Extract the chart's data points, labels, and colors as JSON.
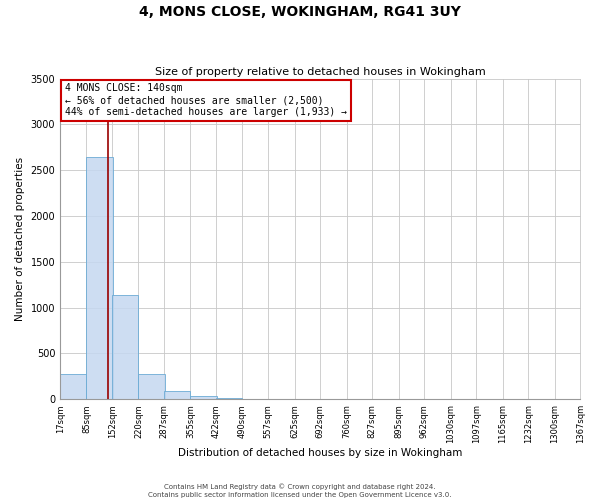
{
  "title": "4, MONS CLOSE, WOKINGHAM, RG41 3UY",
  "subtitle": "Size of property relative to detached houses in Wokingham",
  "xlabel": "Distribution of detached houses by size in Wokingham",
  "ylabel": "Number of detached properties",
  "bin_edges": [
    17,
    85,
    152,
    220,
    287,
    355,
    422,
    490,
    557,
    625,
    692,
    760,
    827,
    895,
    962,
    1030,
    1097,
    1165,
    1232,
    1300,
    1367
  ],
  "bin_labels": [
    "17sqm",
    "85sqm",
    "152sqm",
    "220sqm",
    "287sqm",
    "355sqm",
    "422sqm",
    "490sqm",
    "557sqm",
    "625sqm",
    "692sqm",
    "760sqm",
    "827sqm",
    "895sqm",
    "962sqm",
    "1030sqm",
    "1097sqm",
    "1165sqm",
    "1232sqm",
    "1300sqm",
    "1367sqm"
  ],
  "bar_heights": [
    270,
    2640,
    1140,
    275,
    90,
    30,
    15,
    0,
    0,
    0,
    0,
    0,
    0,
    0,
    0,
    0,
    0,
    0,
    0,
    0
  ],
  "bar_color": "#c5d8f0",
  "bar_edge_color": "#6aaad4",
  "bar_alpha": 0.85,
  "property_line_x": 140,
  "property_line_color": "#990000",
  "ylim": [
    0,
    3500
  ],
  "xlim": [
    17,
    1367
  ],
  "annotation_title": "4 MONS CLOSE: 140sqm",
  "annotation_line1": "← 56% of detached houses are smaller (2,500)",
  "annotation_line2": "44% of semi-detached houses are larger (1,933) →",
  "annotation_box_color": "#ffffff",
  "annotation_box_edge_color": "#cc0000",
  "footer_line1": "Contains HM Land Registry data © Crown copyright and database right 2024.",
  "footer_line2": "Contains public sector information licensed under the Open Government Licence v3.0.",
  "background_color": "#ffffff",
  "grid_color": "#c8c8c8",
  "title_fontsize": 10,
  "subtitle_fontsize": 8,
  "ylabel_fontsize": 7.5,
  "xlabel_fontsize": 7.5,
  "tick_fontsize": 6,
  "annotation_fontsize": 7,
  "footer_fontsize": 5
}
